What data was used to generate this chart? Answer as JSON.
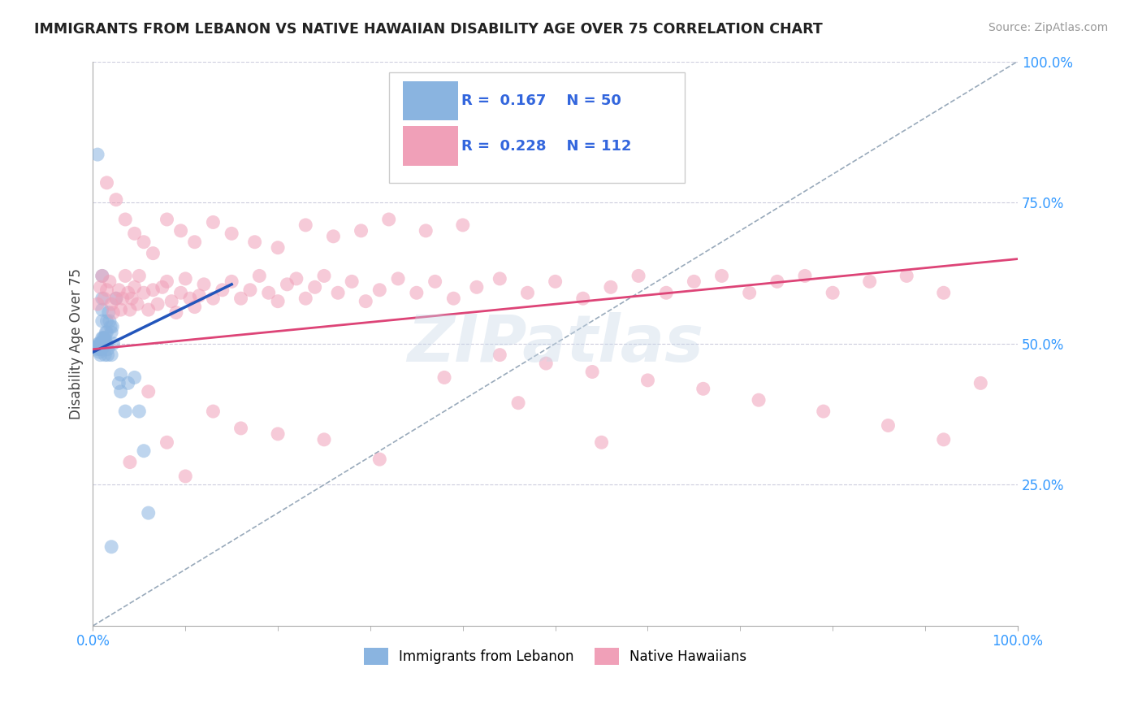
{
  "title": "IMMIGRANTS FROM LEBANON VS NATIVE HAWAIIAN DISABILITY AGE OVER 75 CORRELATION CHART",
  "source": "Source: ZipAtlas.com",
  "ylabel": "Disability Age Over 75",
  "xmin": 0.0,
  "xmax": 1.0,
  "ymin": 0.0,
  "ymax": 1.0,
  "y_tick_labels": [
    "25.0%",
    "50.0%",
    "75.0%",
    "100.0%"
  ],
  "y_tick_values": [
    0.25,
    0.5,
    0.75,
    1.0
  ],
  "legend_labels": [
    "Immigrants from Lebanon",
    "Native Hawaiians"
  ],
  "blue_r": "0.167",
  "blue_n": "50",
  "pink_r": "0.228",
  "pink_n": "112",
  "blue_color": "#8ab4e0",
  "pink_color": "#f0a0b8",
  "blue_line_color": "#2255bb",
  "pink_line_color": "#dd4477",
  "dashed_line_color": "#99aabb",
  "background_color": "#ffffff",
  "blue_points_x": [
    0.005,
    0.005,
    0.005,
    0.006,
    0.006,
    0.007,
    0.007,
    0.007,
    0.008,
    0.008,
    0.008,
    0.009,
    0.009,
    0.01,
    0.01,
    0.01,
    0.01,
    0.01,
    0.011,
    0.011,
    0.012,
    0.012,
    0.012,
    0.013,
    0.013,
    0.014,
    0.014,
    0.015,
    0.015,
    0.015,
    0.016,
    0.016,
    0.017,
    0.018,
    0.019,
    0.02,
    0.02,
    0.021,
    0.022,
    0.025,
    0.028,
    0.03,
    0.035,
    0.038,
    0.045,
    0.05,
    0.055,
    0.06,
    0.03,
    0.02
  ],
  "blue_points_y": [
    0.835,
    0.495,
    0.49,
    0.5,
    0.495,
    0.5,
    0.495,
    0.485,
    0.5,
    0.49,
    0.48,
    0.5,
    0.49,
    0.62,
    0.58,
    0.56,
    0.54,
    0.51,
    0.51,
    0.5,
    0.51,
    0.505,
    0.495,
    0.51,
    0.48,
    0.52,
    0.5,
    0.54,
    0.52,
    0.5,
    0.49,
    0.48,
    0.555,
    0.54,
    0.53,
    0.52,
    0.48,
    0.53,
    0.5,
    0.58,
    0.43,
    0.415,
    0.38,
    0.43,
    0.44,
    0.38,
    0.31,
    0.2,
    0.445,
    0.14
  ],
  "pink_points_x": [
    0.005,
    0.008,
    0.01,
    0.012,
    0.015,
    0.018,
    0.02,
    0.022,
    0.025,
    0.028,
    0.03,
    0.032,
    0.035,
    0.038,
    0.04,
    0.042,
    0.045,
    0.048,
    0.05,
    0.055,
    0.06,
    0.065,
    0.07,
    0.075,
    0.08,
    0.085,
    0.09,
    0.095,
    0.1,
    0.105,
    0.11,
    0.115,
    0.12,
    0.13,
    0.14,
    0.15,
    0.16,
    0.17,
    0.18,
    0.19,
    0.2,
    0.21,
    0.22,
    0.23,
    0.24,
    0.25,
    0.265,
    0.28,
    0.295,
    0.31,
    0.33,
    0.35,
    0.37,
    0.39,
    0.415,
    0.44,
    0.47,
    0.5,
    0.53,
    0.56,
    0.59,
    0.62,
    0.65,
    0.68,
    0.71,
    0.74,
    0.77,
    0.8,
    0.84,
    0.88,
    0.92,
    0.015,
    0.025,
    0.035,
    0.045,
    0.055,
    0.065,
    0.08,
    0.095,
    0.11,
    0.13,
    0.15,
    0.175,
    0.2,
    0.23,
    0.26,
    0.29,
    0.32,
    0.36,
    0.4,
    0.44,
    0.49,
    0.54,
    0.6,
    0.66,
    0.72,
    0.79,
    0.86,
    0.92,
    0.96,
    0.04,
    0.06,
    0.08,
    0.1,
    0.13,
    0.16,
    0.2,
    0.25,
    0.31,
    0.38,
    0.46,
    0.55
  ],
  "pink_points_y": [
    0.57,
    0.6,
    0.62,
    0.58,
    0.595,
    0.61,
    0.57,
    0.555,
    0.58,
    0.595,
    0.56,
    0.58,
    0.62,
    0.59,
    0.56,
    0.58,
    0.6,
    0.57,
    0.62,
    0.59,
    0.56,
    0.595,
    0.57,
    0.6,
    0.61,
    0.575,
    0.555,
    0.59,
    0.615,
    0.58,
    0.565,
    0.585,
    0.605,
    0.58,
    0.595,
    0.61,
    0.58,
    0.595,
    0.62,
    0.59,
    0.575,
    0.605,
    0.615,
    0.58,
    0.6,
    0.62,
    0.59,
    0.61,
    0.575,
    0.595,
    0.615,
    0.59,
    0.61,
    0.58,
    0.6,
    0.615,
    0.59,
    0.61,
    0.58,
    0.6,
    0.62,
    0.59,
    0.61,
    0.62,
    0.59,
    0.61,
    0.62,
    0.59,
    0.61,
    0.62,
    0.59,
    0.785,
    0.755,
    0.72,
    0.695,
    0.68,
    0.66,
    0.72,
    0.7,
    0.68,
    0.715,
    0.695,
    0.68,
    0.67,
    0.71,
    0.69,
    0.7,
    0.72,
    0.7,
    0.71,
    0.48,
    0.465,
    0.45,
    0.435,
    0.42,
    0.4,
    0.38,
    0.355,
    0.33,
    0.43,
    0.29,
    0.415,
    0.325,
    0.265,
    0.38,
    0.35,
    0.34,
    0.33,
    0.295,
    0.44,
    0.395,
    0.325
  ]
}
